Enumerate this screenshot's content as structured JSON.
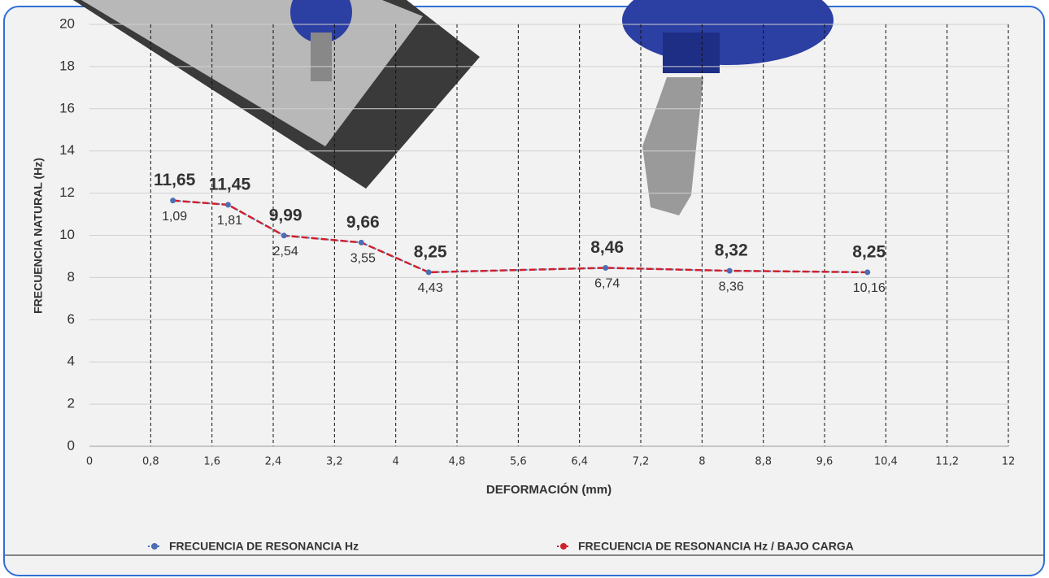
{
  "chart_data": {
    "type": "line",
    "y_label": "FRECUENCIA NATURAL (Hz)",
    "x_label": "DEFORMACIÓN (mm)",
    "x": [
      1.09,
      1.81,
      2.54,
      3.55,
      4.43,
      6.74,
      8.36,
      10.16
    ],
    "x_labels": [
      "1,09",
      "1,81",
      "2,54",
      "3,55",
      "4,43",
      "6,74",
      "8,36",
      "10,16"
    ],
    "series": [
      {
        "name": "FRECUENCIA DE RESONANCIA Hz",
        "color": "#4a6fb5",
        "values": [
          11.65,
          11.45,
          9.99,
          9.66,
          8.25,
          8.46,
          8.32,
          8.25
        ],
        "value_labels": [
          "11,65",
          "11,45",
          "9,99",
          "9,66",
          "8,25",
          "8,46",
          "8,32",
          "8,25"
        ]
      },
      {
        "name": "FRECUENCIA DE RESONANCIA Hz / BAJO CARGA",
        "color": "#d0202a",
        "values": [
          11.65,
          11.45,
          9.99,
          9.66,
          8.25,
          8.46,
          8.32,
          8.25
        ]
      }
    ],
    "xlim": [
      0,
      12
    ],
    "xticks": [
      0,
      {
        "value": 0.8,
        "label": "0,8"
      },
      {
        "value": 1.6,
        "label": "1,6"
      },
      {
        "value": 2.4,
        "label": "2,4"
      },
      {
        "value": 3.2,
        "label": "3,2"
      },
      4,
      {
        "value": 4.8,
        "label": "4,8"
      },
      {
        "value": 5.6,
        "label": "5,6"
      },
      {
        "value": 6.4,
        "label": "6,4"
      },
      {
        "value": 7.2,
        "label": "7,2"
      },
      8,
      {
        "value": 8.8,
        "label": "8,8"
      },
      {
        "value": 9.6,
        "label": "9,6"
      },
      {
        "value": 10.4,
        "label": "10,4"
      },
      {
        "value": 11.2,
        "label": "11,2"
      },
      12
    ],
    "ylim": [
      0,
      20
    ],
    "yticks": [
      0,
      2,
      4,
      6,
      8,
      10,
      12,
      14,
      16,
      18,
      20
    ],
    "grid": true
  }
}
